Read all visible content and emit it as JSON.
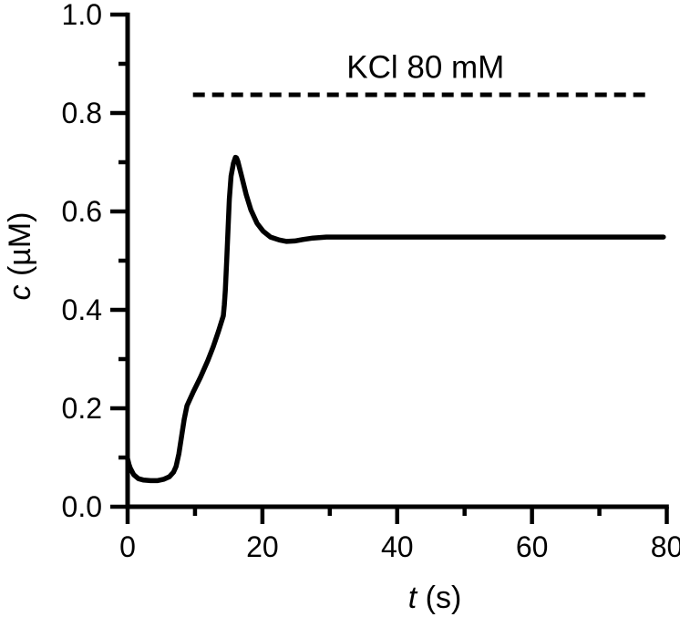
{
  "figure": {
    "background": "#ffffff",
    "ink_color": "#000000"
  },
  "chart_data": {
    "type": "line",
    "title": "",
    "xlabel": {
      "variable": "t",
      "unit": "(s)",
      "full": "t (s)"
    },
    "ylabel": {
      "variable": "c",
      "unit": "(µM)",
      "full": "c (µM)"
    },
    "xlim": [
      0,
      80
    ],
    "ylim": [
      0.0,
      1.0
    ],
    "x_major_ticks": [
      0,
      20,
      40,
      60,
      80
    ],
    "x_minor_ticks": [
      10,
      30,
      50,
      70
    ],
    "y_major_ticks": [
      0.0,
      0.2,
      0.4,
      0.6,
      0.8,
      1.0
    ],
    "y_major_tick_labels": [
      "0.0",
      "0.2",
      "0.4",
      "0.6",
      "0.8",
      "1.0"
    ],
    "y_minor_ticks": [
      0.1,
      0.3,
      0.5,
      0.7,
      0.9
    ],
    "grid": false,
    "legend": "none",
    "annotation": {
      "text": "KCl 80 mM",
      "x": 44.2,
      "y": 0.871
    },
    "series": [
      {
        "name": "solid-response-curve",
        "style": "solid",
        "points": [
          [
            0,
            0.097
          ],
          [
            0.2,
            0.086
          ],
          [
            0.4,
            0.078
          ],
          [
            0.9,
            0.065
          ],
          [
            1.6,
            0.057
          ],
          [
            2.4,
            0.054
          ],
          [
            3.4,
            0.053
          ],
          [
            4.4,
            0.053
          ],
          [
            5.4,
            0.056
          ],
          [
            6.2,
            0.061
          ],
          [
            6.8,
            0.07
          ],
          [
            7.2,
            0.082
          ],
          [
            7.6,
            0.107
          ],
          [
            8.0,
            0.143
          ],
          [
            8.4,
            0.178
          ],
          [
            8.8,
            0.205
          ],
          [
            9.7,
            0.232
          ],
          [
            10.8,
            0.263
          ],
          [
            11.9,
            0.297
          ],
          [
            12.7,
            0.325
          ],
          [
            13.5,
            0.357
          ],
          [
            14.2,
            0.388
          ],
          [
            14.35,
            0.41
          ],
          [
            14.5,
            0.44
          ],
          [
            14.7,
            0.5
          ],
          [
            14.9,
            0.565
          ],
          [
            15.1,
            0.625
          ],
          [
            15.35,
            0.672
          ],
          [
            15.7,
            0.698
          ],
          [
            16.0,
            0.71
          ],
          [
            16.15,
            0.709
          ],
          [
            16.35,
            0.702
          ],
          [
            16.9,
            0.672
          ],
          [
            17.6,
            0.634
          ],
          [
            18.3,
            0.603
          ],
          [
            19.2,
            0.576
          ],
          [
            20.1,
            0.56
          ],
          [
            21.2,
            0.548
          ],
          [
            22.5,
            0.542
          ],
          [
            23.6,
            0.539
          ],
          [
            24.8,
            0.54
          ],
          [
            26.0,
            0.543
          ],
          [
            27.5,
            0.546
          ],
          [
            29.5,
            0.548
          ],
          [
            35,
            0.548
          ],
          [
            45,
            0.548
          ],
          [
            55,
            0.548
          ],
          [
            65,
            0.548
          ],
          [
            75,
            0.548
          ],
          [
            79.5,
            0.548
          ]
        ]
      },
      {
        "name": "kcl-level-dashed-line",
        "style": "dashed",
        "label": "KCl 80 mM",
        "points": [
          [
            9.7,
            0.837
          ],
          [
            77.4,
            0.837
          ]
        ]
      }
    ]
  }
}
